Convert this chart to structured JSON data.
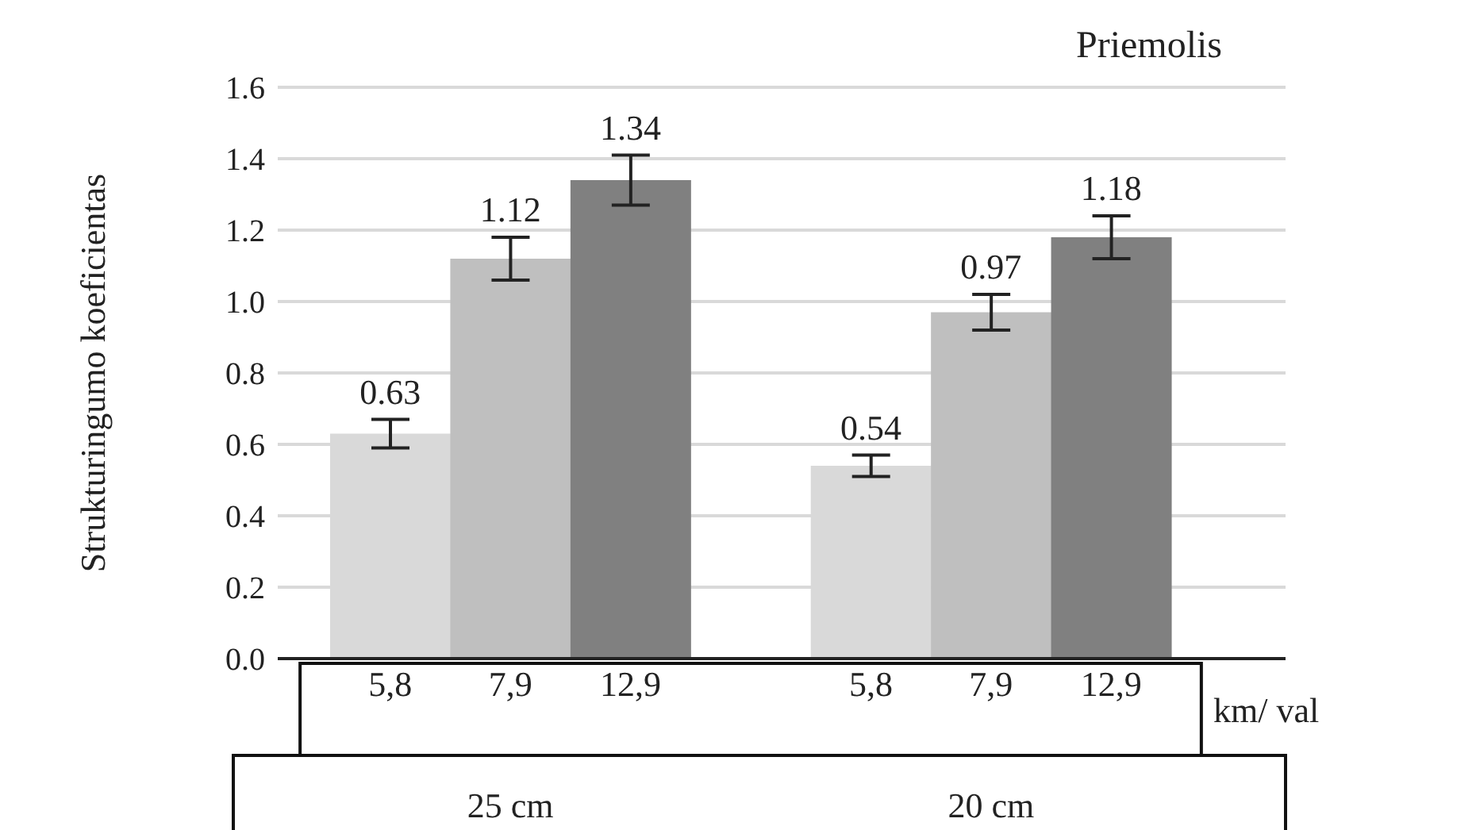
{
  "chart_data": {
    "type": "bar",
    "title": "Priemolis",
    "ylabel": "Strukturingumo koeficientas",
    "xlabel": "km/ val",
    "categories": [
      "5,8",
      "7,9",
      "12,9",
      null,
      "5,8",
      "7,9",
      "12,9"
    ],
    "values": [
      0.63,
      1.12,
      1.34,
      null,
      0.54,
      0.97,
      1.18
    ],
    "errors": [
      0.04,
      0.06,
      0.07,
      null,
      0.03,
      0.05,
      0.06
    ],
    "colors": [
      "#d9d9d9",
      "#bfbfbf",
      "#808080",
      null,
      "#d9d9d9",
      "#bfbfbf",
      "#808080"
    ],
    "annotations": [
      "25 cm",
      "20 cm"
    ],
    "ylim": [
      0,
      1.6
    ],
    "yticks": [
      {
        "value": 0,
        "label": "0.0"
      },
      {
        "value": 0.2,
        "label": "0.2"
      },
      {
        "value": 0.4,
        "label": "0.4"
      },
      {
        "value": 0.6,
        "label": "0.6"
      },
      {
        "value": 0.8,
        "label": "0.8"
      },
      {
        "value": 1,
        "label": "1.0"
      },
      {
        "value": 1.2,
        "label": "1.2"
      },
      {
        "value": 1.4,
        "label": "1.4"
      },
      {
        "value": 1.6,
        "label": "1.6"
      }
    ],
    "grid": "y",
    "data_labels": true
  }
}
